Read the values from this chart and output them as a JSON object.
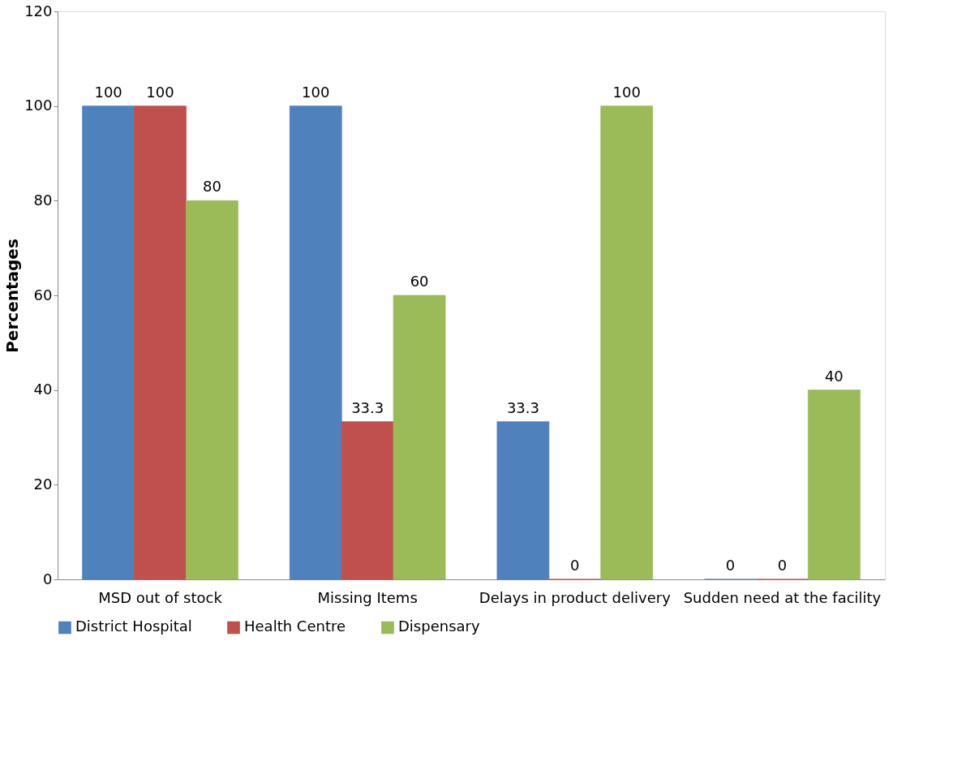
{
  "chart_data": {
    "type": "bar",
    "ylabel": "Percentages",
    "categories": [
      "MSD out of stock",
      "Missing Items",
      "Delays in product delivery",
      "Sudden need at the facility"
    ],
    "series": [
      {
        "name": "District Hospital",
        "color": "#4f81bd",
        "values": [
          100,
          100,
          33.3,
          0
        ]
      },
      {
        "name": "Health Centre",
        "color": "#c0504d",
        "values": [
          100,
          33.3,
          0,
          0
        ]
      },
      {
        "name": "Dispensary",
        "color": "#9bbb59",
        "values": [
          80,
          60,
          100,
          40
        ]
      }
    ],
    "ylim": [
      0,
      120
    ],
    "yticks": [
      0,
      20,
      40,
      60,
      80,
      100,
      120
    ],
    "grid": false,
    "legend": "bottom",
    "data_labels": true
  }
}
